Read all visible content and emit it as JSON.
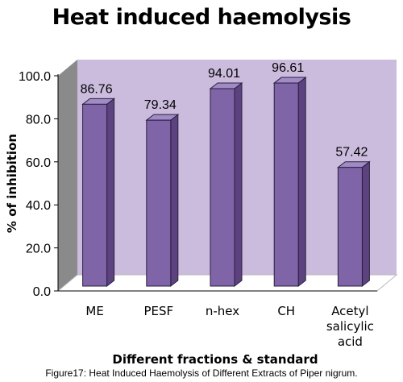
{
  "chart_data": {
    "type": "bar",
    "title": "Heat induced haemolysis",
    "xlabel": "Different fractions & standard",
    "ylabel": "% of inhibition",
    "categories": [
      "ME",
      "PESF",
      "n-hex",
      "CH",
      "Acetyl salicylic acid"
    ],
    "values": [
      86.76,
      79.34,
      94.01,
      96.61,
      57.42
    ],
    "value_labels": [
      "86.76",
      "79.34",
      "94.01",
      "96.61",
      "57.42"
    ],
    "yticks": [
      "0.0",
      "20.0",
      "40.0",
      "60.0",
      "80.0",
      "100.0"
    ],
    "ylim": [
      0,
      100
    ],
    "grid": false,
    "legend": "none",
    "style": "3d-column",
    "colors": {
      "bar_front": "#7f64a8",
      "bar_side": "#5c4380",
      "bar_top": "#a08bc6",
      "bar_outline": "#2b1e3d",
      "back_wall": "#cbbcde",
      "side_wall": "#8a8a8a",
      "floor": "#ffffff"
    }
  },
  "caption": "Figure17: Heat Induced Haemolysis of Different Extracts of Piper nigrum."
}
